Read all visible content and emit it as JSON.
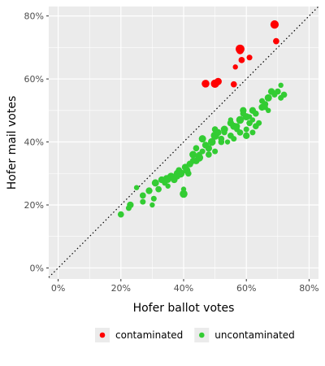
{
  "chart_data": {
    "type": "scatter",
    "xlabel": "Hofer ballot votes",
    "ylabel": "Hofer mail votes",
    "xlim": [
      -0.03,
      0.83
    ],
    "ylim": [
      -0.035,
      0.83
    ],
    "xticks": [
      0,
      0.2,
      0.4,
      0.6,
      0.8
    ],
    "xtick_labels": [
      "0%",
      "20%",
      "40%",
      "60%",
      "80%"
    ],
    "yticks": [
      0,
      0.2,
      0.4,
      0.6,
      0.8
    ],
    "ytick_labels": [
      "0%",
      "20%",
      "40%",
      "60%",
      "80%"
    ],
    "grid": true,
    "legend_position": "bottom",
    "reference_line": {
      "style": "dotted",
      "slope": 1,
      "intercept": 0
    },
    "series": [
      {
        "name": "contaminated",
        "color": "#ff0000",
        "x": [
          0.69,
          0.69,
          0.695,
          0.58,
          0.58,
          0.585,
          0.61,
          0.565,
          0.47,
          0.5,
          0.51,
          0.505,
          0.56
        ],
        "y": [
          0.773,
          0.775,
          0.72,
          0.695,
          0.69,
          0.66,
          0.668,
          0.638,
          0.585,
          0.585,
          0.592,
          0.588,
          0.583
        ],
        "size": [
          1.6,
          1.3,
          1.2,
          1.7,
          1.4,
          1.2,
          1.1,
          1.0,
          1.5,
          1.6,
          1.4,
          1.3,
          1.2
        ]
      },
      {
        "name": "uncontaminated",
        "color": "#33cc33",
        "x": [
          0.2,
          0.225,
          0.23,
          0.25,
          0.27,
          0.27,
          0.29,
          0.3,
          0.305,
          0.31,
          0.32,
          0.33,
          0.34,
          0.345,
          0.35,
          0.36,
          0.37,
          0.38,
          0.385,
          0.39,
          0.4,
          0.405,
          0.41,
          0.415,
          0.42,
          0.43,
          0.44,
          0.44,
          0.45,
          0.46,
          0.46,
          0.47,
          0.48,
          0.49,
          0.5,
          0.5,
          0.51,
          0.52,
          0.53,
          0.54,
          0.55,
          0.55,
          0.56,
          0.57,
          0.58,
          0.58,
          0.59,
          0.6,
          0.6,
          0.61,
          0.62,
          0.62,
          0.63,
          0.64,
          0.65,
          0.66,
          0.67,
          0.68,
          0.69,
          0.7,
          0.71,
          0.71,
          0.72,
          0.4,
          0.43,
          0.45,
          0.48,
          0.52,
          0.56,
          0.6,
          0.63,
          0.66,
          0.5,
          0.55,
          0.59,
          0.62,
          0.67,
          0.35,
          0.38,
          0.42,
          0.47,
          0.53,
          0.57,
          0.61,
          0.65
        ],
        "y": [
          0.17,
          0.19,
          0.2,
          0.255,
          0.23,
          0.21,
          0.245,
          0.2,
          0.22,
          0.27,
          0.25,
          0.28,
          0.27,
          0.285,
          0.26,
          0.29,
          0.28,
          0.3,
          0.31,
          0.3,
          0.235,
          0.32,
          0.31,
          0.3,
          0.33,
          0.36,
          0.34,
          0.38,
          0.35,
          0.37,
          0.41,
          0.39,
          0.36,
          0.4,
          0.42,
          0.37,
          0.43,
          0.41,
          0.44,
          0.4,
          0.46,
          0.42,
          0.45,
          0.44,
          0.47,
          0.43,
          0.5,
          0.48,
          0.44,
          0.46,
          0.5,
          0.47,
          0.49,
          0.46,
          0.51,
          0.52,
          0.54,
          0.56,
          0.55,
          0.56,
          0.58,
          0.54,
          0.55,
          0.25,
          0.34,
          0.36,
          0.38,
          0.4,
          0.41,
          0.42,
          0.45,
          0.51,
          0.44,
          0.47,
          0.49,
          0.43,
          0.5,
          0.28,
          0.29,
          0.33,
          0.39,
          0.43,
          0.45,
          0.48,
          0.53
        ],
        "size": [
          1.2,
          1.1,
          1.3,
          1.0,
          1.2,
          1.1,
          1.3,
          1.0,
          1.1,
          1.4,
          1.2,
          1.3,
          1.1,
          1.2,
          1.0,
          1.5,
          1.3,
          1.4,
          1.2,
          1.6,
          1.5,
          1.3,
          1.4,
          1.2,
          1.1,
          1.4,
          1.3,
          1.2,
          1.5,
          1.1,
          1.4,
          1.3,
          1.2,
          1.5,
          1.6,
          1.1,
          1.3,
          1.2,
          1.4,
          1.0,
          1.3,
          1.2,
          1.4,
          1.1,
          1.5,
          1.2,
          1.3,
          1.4,
          1.1,
          1.2,
          1.3,
          1.0,
          1.2,
          1.1,
          1.3,
          1.2,
          1.4,
          1.3,
          1.1,
          1.2,
          1.0,
          1.1,
          1.2,
          1.0,
          1.2,
          1.1,
          1.3,
          1.2,
          1.1,
          1.3,
          1.2,
          1.1,
          1.2,
          1.0,
          1.2,
          1.1,
          1.0,
          1.2,
          1.1,
          1.3,
          1.2,
          1.1,
          1.2,
          1.0,
          1.1
        ]
      }
    ]
  }
}
